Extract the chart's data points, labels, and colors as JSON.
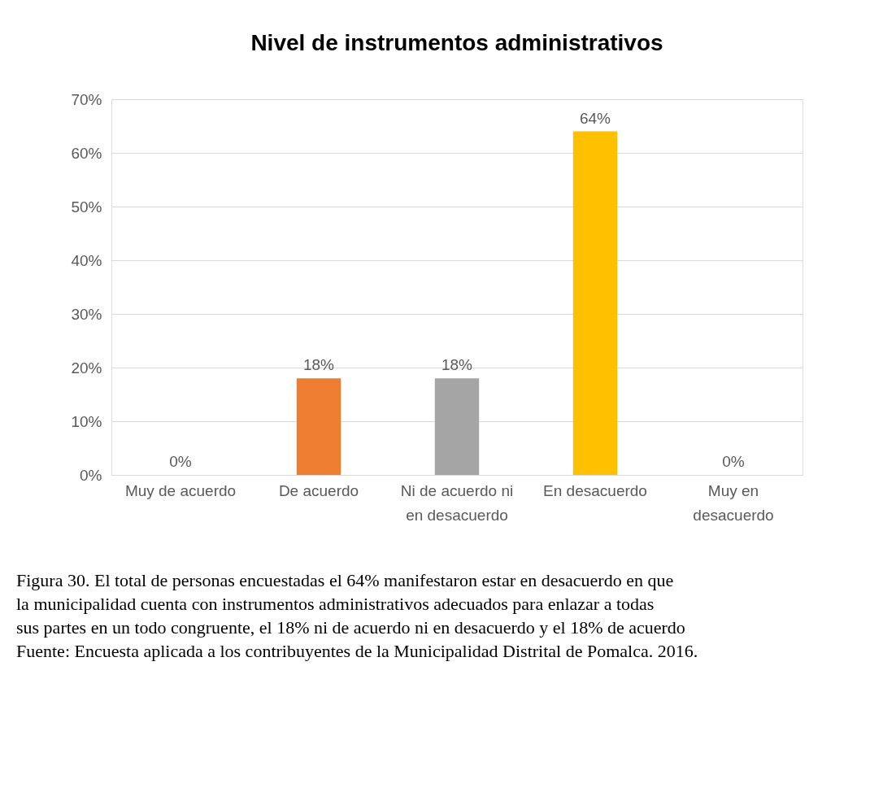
{
  "chart_data": {
    "type": "bar",
    "title": "Nivel de instrumentos administrativos",
    "categories": [
      "Muy de acuerdo",
      "De acuerdo",
      "Ni de acuerdo ni en desacuerdo",
      "En desacuerdo",
      "Muy en desacuerdo"
    ],
    "values": [
      0,
      18,
      18,
      64,
      0
    ],
    "colors": [
      "#4472c4",
      "#ed7d31",
      "#a5a5a5",
      "#ffc000",
      "#5b9bd5"
    ],
    "value_labels": [
      "0%",
      "18%",
      "18%",
      "64%",
      "0%"
    ],
    "ylim": [
      0,
      70
    ],
    "yticks": [
      {
        "value": 0,
        "label": "0%"
      },
      {
        "value": 10,
        "label": "10%"
      },
      {
        "value": 20,
        "label": "20%"
      },
      {
        "value": 30,
        "label": "30%"
      },
      {
        "value": 40,
        "label": "40%"
      },
      {
        "value": 50,
        "label": "50%"
      },
      {
        "value": 60,
        "label": "60%"
      },
      {
        "value": 70,
        "label": "70%"
      }
    ],
    "grid": "y",
    "annotations": [
      "Figura 30. El total de personas encuestadas el 64% manifestaron estar en desacuerdo en que",
      "la municipalidad cuenta con instrumentos administrativos adecuados para enlazar a todas",
      "sus partes en un todo congruente, el 18% ni de acuerdo ni en desacuerdo y el 18% de acuerdo",
      "Fuente: Encuesta aplicada a los contribuyentes de la Municipalidad Distrital de Pomalca. 2016."
    ]
  }
}
